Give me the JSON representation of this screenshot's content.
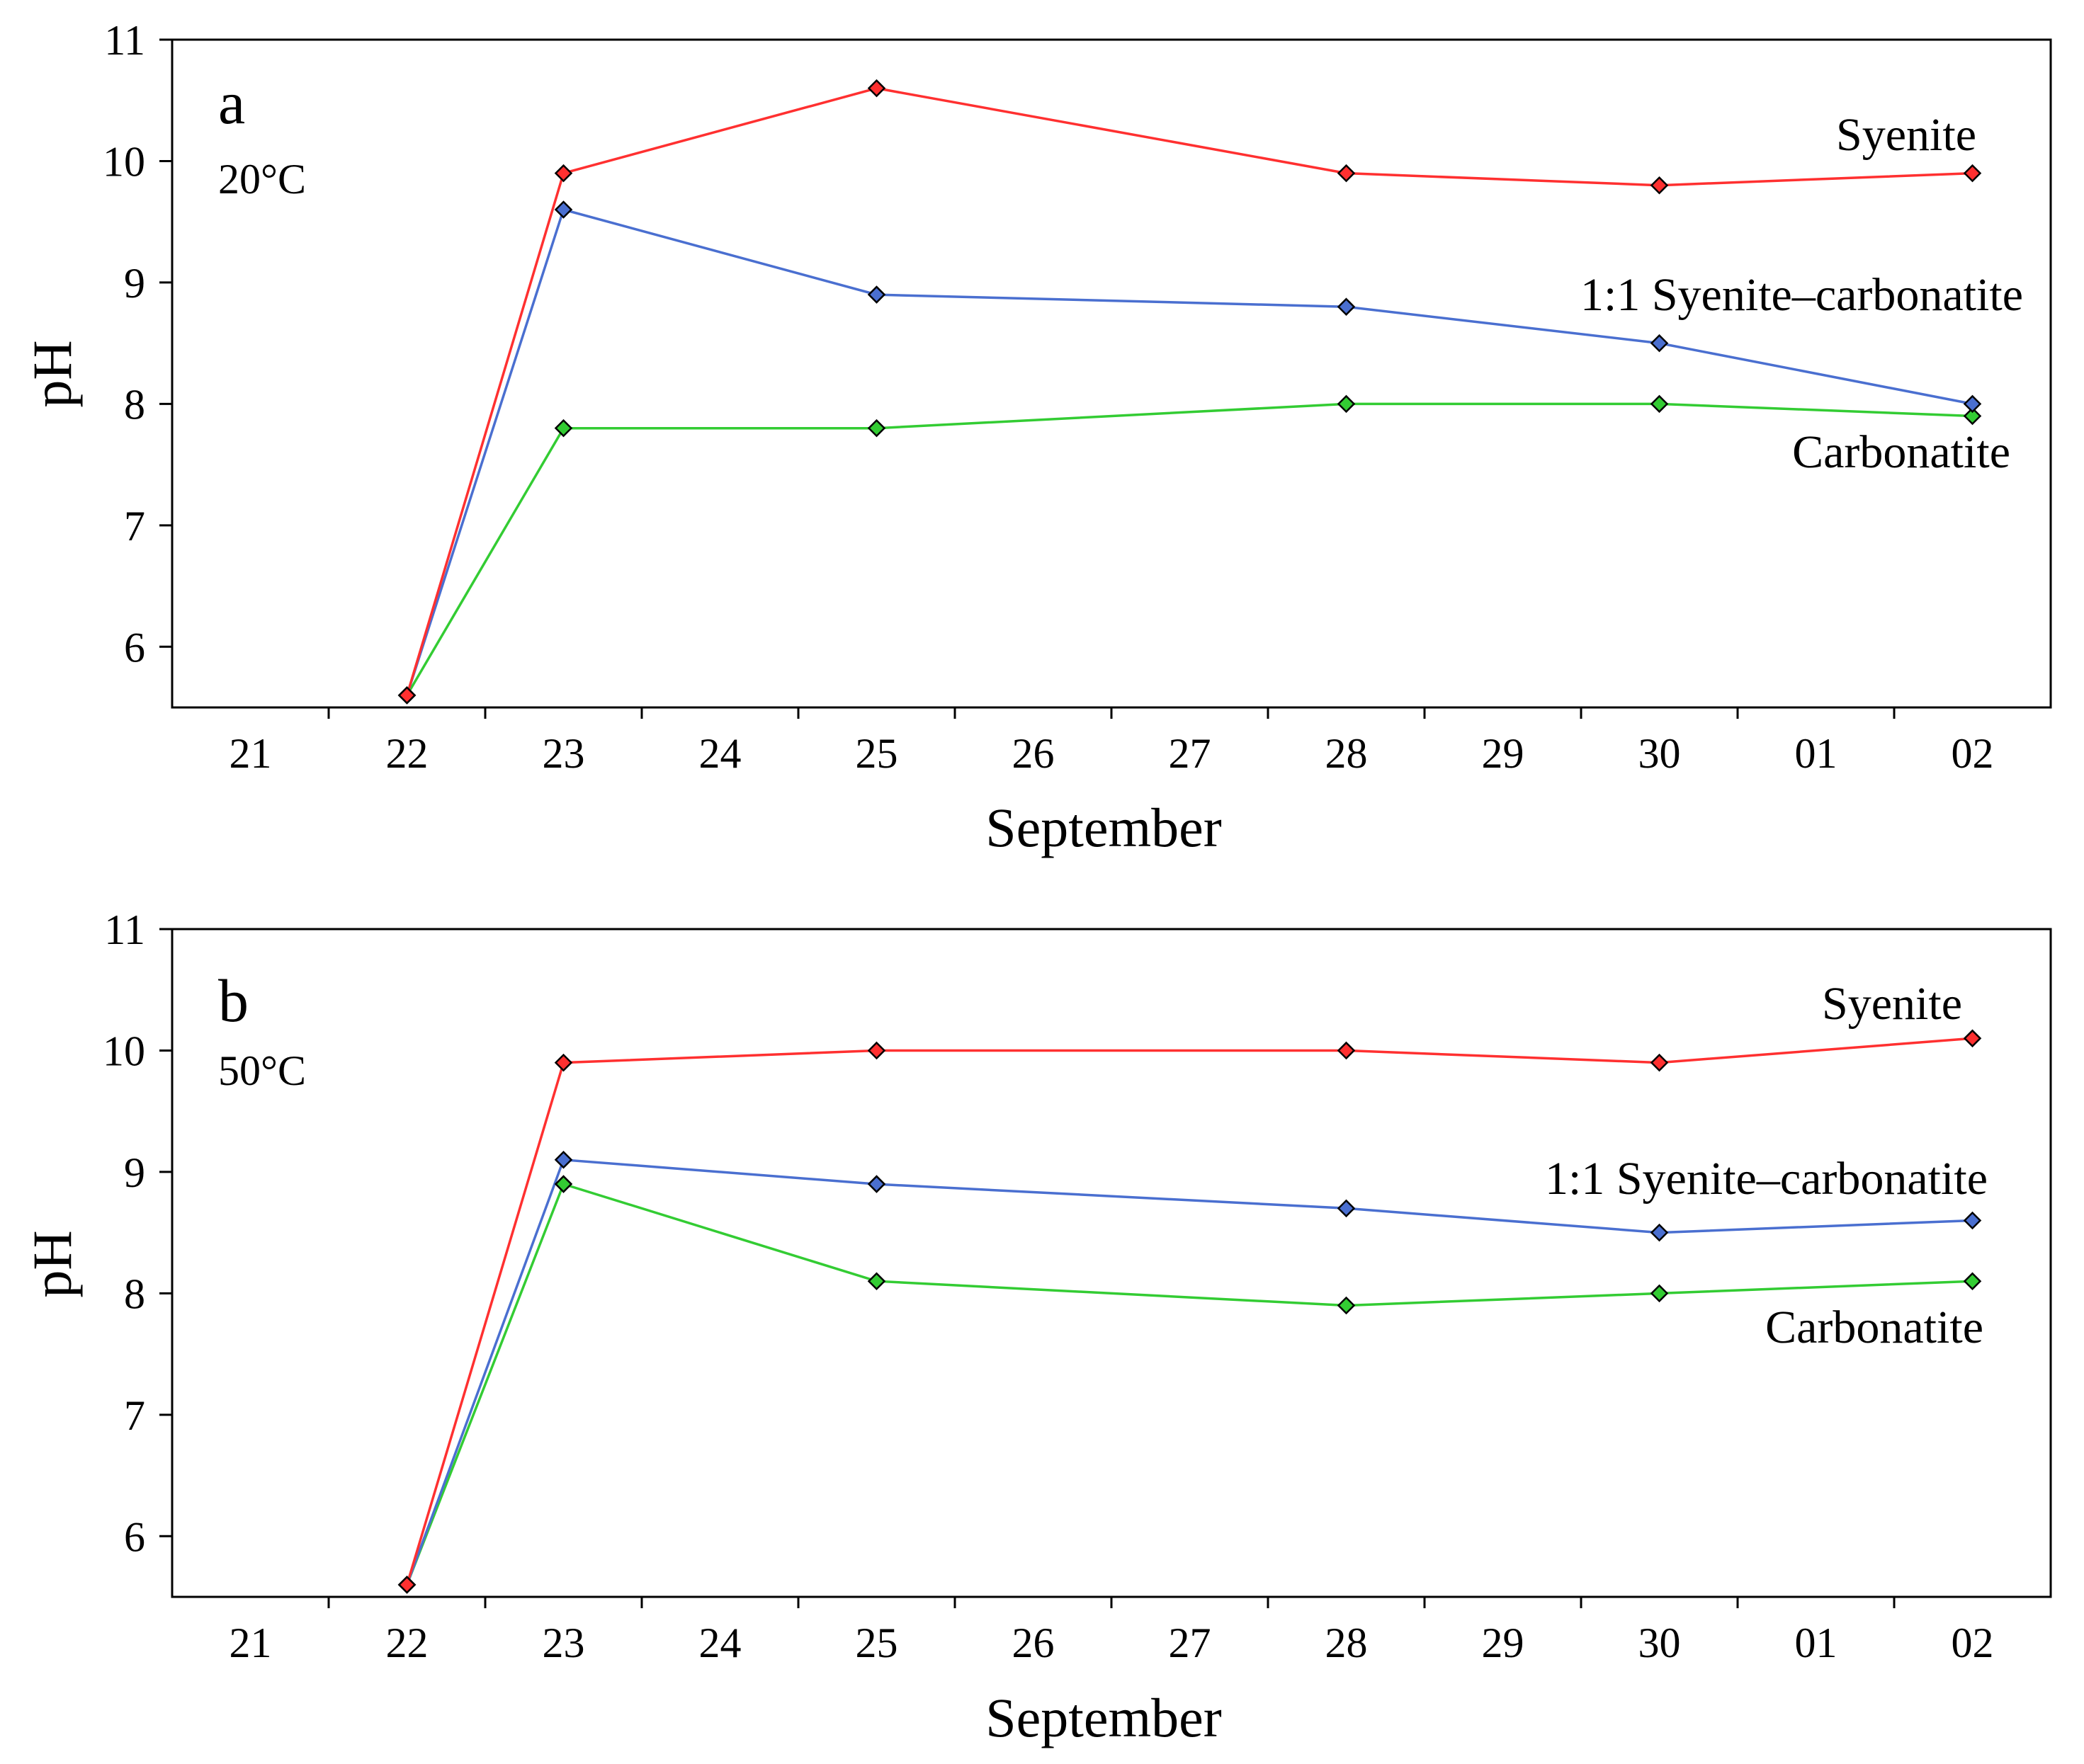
{
  "chart_data": [
    {
      "type": "line",
      "panel_label": "a",
      "temperature_label": "20°C",
      "xlabel": "September",
      "ylabel": "pH",
      "ylim": [
        5.5,
        11
      ],
      "yticks": [
        6,
        7,
        8,
        9,
        10,
        11
      ],
      "x_categories": [
        "21",
        "22",
        "23",
        "24",
        "25",
        "26",
        "27",
        "28",
        "29",
        "30",
        "01",
        "02"
      ],
      "series": [
        {
          "name": "Syenite",
          "color": "#ff3030",
          "x": [
            "22",
            "23",
            "25",
            "28",
            "30",
            "02"
          ],
          "values": [
            5.6,
            9.9,
            10.6,
            9.9,
            9.8,
            9.9
          ]
        },
        {
          "name": "1:1 Syenite–carbonatite",
          "color": "#4a6fd0",
          "x": [
            "22",
            "23",
            "25",
            "28",
            "30",
            "02"
          ],
          "values": [
            5.6,
            9.6,
            8.9,
            8.8,
            8.5,
            8.0
          ]
        },
        {
          "name": "Carbonatite",
          "color": "#33cc33",
          "x": [
            "22",
            "23",
            "25",
            "28",
            "30",
            "02"
          ],
          "values": [
            5.6,
            7.8,
            7.8,
            8.0,
            8.0,
            7.9
          ]
        }
      ]
    },
    {
      "type": "line",
      "panel_label": "b",
      "temperature_label": "50°C",
      "xlabel": "September",
      "ylabel": "pH",
      "ylim": [
        5.5,
        11
      ],
      "yticks": [
        6,
        7,
        8,
        9,
        10,
        11
      ],
      "x_categories": [
        "21",
        "22",
        "23",
        "24",
        "25",
        "26",
        "27",
        "28",
        "29",
        "30",
        "01",
        "02"
      ],
      "series": [
        {
          "name": "Syenite",
          "color": "#ff3030",
          "x": [
            "22",
            "23",
            "25",
            "28",
            "30",
            "02"
          ],
          "values": [
            5.6,
            9.9,
            10.0,
            10.0,
            9.9,
            10.1
          ]
        },
        {
          "name": "1:1 Syenite–carbonatite",
          "color": "#4a6fd0",
          "x": [
            "22",
            "23",
            "25",
            "28",
            "30",
            "02"
          ],
          "values": [
            5.6,
            9.1,
            8.9,
            8.7,
            8.5,
            8.6
          ]
        },
        {
          "name": "Carbonatite",
          "color": "#33cc33",
          "x": [
            "22",
            "23",
            "25",
            "28",
            "30",
            "02"
          ],
          "values": [
            5.6,
            8.9,
            8.1,
            7.9,
            8.0,
            8.1
          ]
        }
      ]
    }
  ]
}
